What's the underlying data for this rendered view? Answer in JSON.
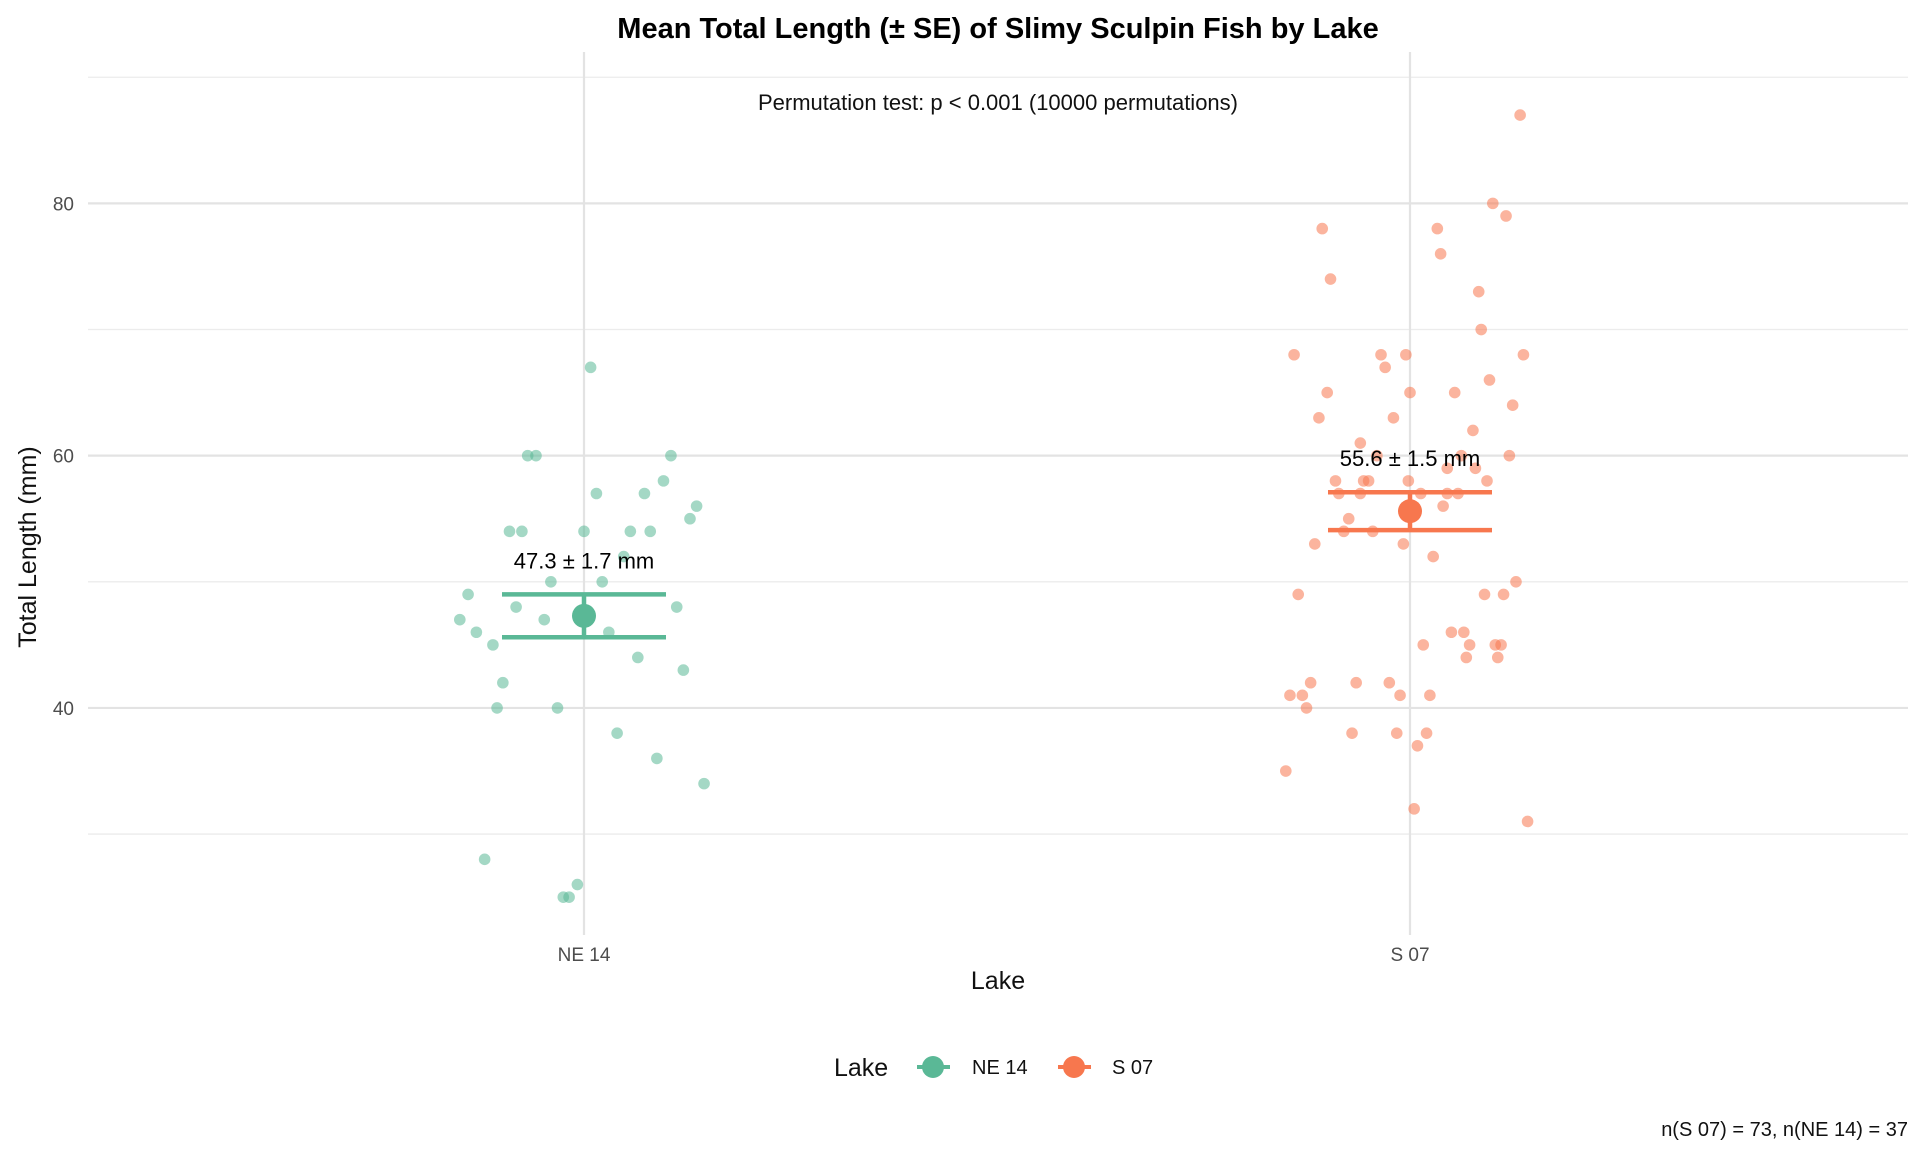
{
  "chart_data": {
    "type": "scatter",
    "title": "Mean Total Length (± SE) of Slimy Sculpin Fish by Lake",
    "subtitle": "Permutation test: p < 0.001 (10000 permutations)",
    "xlabel": "Lake",
    "ylabel": "Total Length (mm)",
    "caption": "n(S 07) = 73, n(NE 14) = 37",
    "categories": [
      "NE 14",
      "S 07"
    ],
    "y_ticks": [
      40,
      60,
      80
    ],
    "ylim": [
      22,
      92
    ],
    "grid": true,
    "legend": {
      "title": "Lake",
      "position": "bottom",
      "entries": [
        "NE 14",
        "S 07"
      ]
    },
    "colors": {
      "NE 14": "#5ab896",
      "S 07": "#f7774e"
    },
    "series": [
      {
        "name": "NE 14",
        "category": "NE 14",
        "mean": 47.3,
        "se": 1.7,
        "label": "47.3 ± 1.7 mm",
        "points": [
          {
            "dx": -0.15,
            "y": 47
          },
          {
            "dx": -0.14,
            "y": 49
          },
          {
            "dx": -0.13,
            "y": 46
          },
          {
            "dx": -0.12,
            "y": 28
          },
          {
            "dx": -0.11,
            "y": 45
          },
          {
            "dx": -0.105,
            "y": 40
          },
          {
            "dx": -0.098,
            "y": 42
          },
          {
            "dx": -0.09,
            "y": 54
          },
          {
            "dx": -0.082,
            "y": 48
          },
          {
            "dx": -0.075,
            "y": 54
          },
          {
            "dx": -0.068,
            "y": 60
          },
          {
            "dx": -0.058,
            "y": 60
          },
          {
            "dx": -0.048,
            "y": 47
          },
          {
            "dx": -0.04,
            "y": 50
          },
          {
            "dx": -0.032,
            "y": 40
          },
          {
            "dx": -0.025,
            "y": 25
          },
          {
            "dx": -0.018,
            "y": 25
          },
          {
            "dx": -0.008,
            "y": 26
          },
          {
            "dx": 0.0,
            "y": 54
          },
          {
            "dx": 0.008,
            "y": 67
          },
          {
            "dx": 0.015,
            "y": 57
          },
          {
            "dx": 0.022,
            "y": 50
          },
          {
            "dx": 0.03,
            "y": 46
          },
          {
            "dx": 0.04,
            "y": 38
          },
          {
            "dx": 0.048,
            "y": 52
          },
          {
            "dx": 0.056,
            "y": 54
          },
          {
            "dx": 0.065,
            "y": 44
          },
          {
            "dx": 0.073,
            "y": 57
          },
          {
            "dx": 0.08,
            "y": 54
          },
          {
            "dx": 0.088,
            "y": 36
          },
          {
            "dx": 0.096,
            "y": 58
          },
          {
            "dx": 0.105,
            "y": 60
          },
          {
            "dx": 0.112,
            "y": 48
          },
          {
            "dx": 0.12,
            "y": 43
          },
          {
            "dx": 0.128,
            "y": 55
          },
          {
            "dx": 0.136,
            "y": 56
          },
          {
            "dx": 0.145,
            "y": 34
          }
        ]
      },
      {
        "name": "S 07",
        "category": "S 07",
        "mean": 55.6,
        "se": 1.5,
        "label": "55.6 ± 1.5 mm",
        "points": [
          {
            "dx": -0.15,
            "y": 35
          },
          {
            "dx": -0.145,
            "y": 41
          },
          {
            "dx": -0.14,
            "y": 68
          },
          {
            "dx": -0.135,
            "y": 49
          },
          {
            "dx": -0.13,
            "y": 41
          },
          {
            "dx": -0.125,
            "y": 40
          },
          {
            "dx": -0.12,
            "y": 42
          },
          {
            "dx": -0.115,
            "y": 53
          },
          {
            "dx": -0.11,
            "y": 63
          },
          {
            "dx": -0.106,
            "y": 78
          },
          {
            "dx": -0.1,
            "y": 65
          },
          {
            "dx": -0.096,
            "y": 74
          },
          {
            "dx": -0.09,
            "y": 58
          },
          {
            "dx": -0.086,
            "y": 57
          },
          {
            "dx": -0.08,
            "y": 54
          },
          {
            "dx": -0.074,
            "y": 55
          },
          {
            "dx": -0.07,
            "y": 38
          },
          {
            "dx": -0.065,
            "y": 42
          },
          {
            "dx": -0.06,
            "y": 61
          },
          {
            "dx": -0.056,
            "y": 58
          },
          {
            "dx": -0.05,
            "y": 58
          },
          {
            "dx": -0.045,
            "y": 54
          },
          {
            "dx": -0.04,
            "y": 60
          },
          {
            "dx": -0.035,
            "y": 68
          },
          {
            "dx": -0.03,
            "y": 67
          },
          {
            "dx": -0.025,
            "y": 42
          },
          {
            "dx": -0.02,
            "y": 63
          },
          {
            "dx": -0.016,
            "y": 38
          },
          {
            "dx": -0.012,
            "y": 41
          },
          {
            "dx": -0.008,
            "y": 53
          },
          {
            "dx": -0.002,
            "y": 58
          },
          {
            "dx": 0.003,
            "y": 56
          },
          {
            "dx": 0.0,
            "y": 65
          },
          {
            "dx": -0.005,
            "y": 68
          },
          {
            "dx": 0.005,
            "y": 32
          },
          {
            "dx": 0.009,
            "y": 37
          },
          {
            "dx": 0.013,
            "y": 57
          },
          {
            "dx": 0.016,
            "y": 45
          },
          {
            "dx": 0.02,
            "y": 38
          },
          {
            "dx": 0.024,
            "y": 41
          },
          {
            "dx": 0.028,
            "y": 52
          },
          {
            "dx": 0.033,
            "y": 78
          },
          {
            "dx": 0.037,
            "y": 76
          },
          {
            "dx": 0.04,
            "y": 56
          },
          {
            "dx": 0.045,
            "y": 59
          },
          {
            "dx": 0.05,
            "y": 46
          },
          {
            "dx": 0.054,
            "y": 65
          },
          {
            "dx": 0.058,
            "y": 57
          },
          {
            "dx": 0.062,
            "y": 60
          },
          {
            "dx": 0.065,
            "y": 46
          },
          {
            "dx": 0.068,
            "y": 44
          },
          {
            "dx": 0.072,
            "y": 45
          },
          {
            "dx": 0.076,
            "y": 62
          },
          {
            "dx": 0.079,
            "y": 59
          },
          {
            "dx": 0.083,
            "y": 73
          },
          {
            "dx": 0.086,
            "y": 70
          },
          {
            "dx": 0.09,
            "y": 49
          },
          {
            "dx": 0.093,
            "y": 58
          },
          {
            "dx": 0.096,
            "y": 66
          },
          {
            "dx": 0.1,
            "y": 80
          },
          {
            "dx": 0.103,
            "y": 45
          },
          {
            "dx": 0.106,
            "y": 44
          },
          {
            "dx": 0.11,
            "y": 45
          },
          {
            "dx": 0.113,
            "y": 49
          },
          {
            "dx": 0.116,
            "y": 79
          },
          {
            "dx": 0.12,
            "y": 60
          },
          {
            "dx": 0.124,
            "y": 64
          },
          {
            "dx": 0.128,
            "y": 50
          },
          {
            "dx": 0.133,
            "y": 87
          },
          {
            "dx": 0.137,
            "y": 68
          },
          {
            "dx": 0.142,
            "y": 31
          },
          {
            "dx": -0.06,
            "y": 57
          },
          {
            "dx": 0.045,
            "y": 57
          }
        ]
      }
    ]
  }
}
